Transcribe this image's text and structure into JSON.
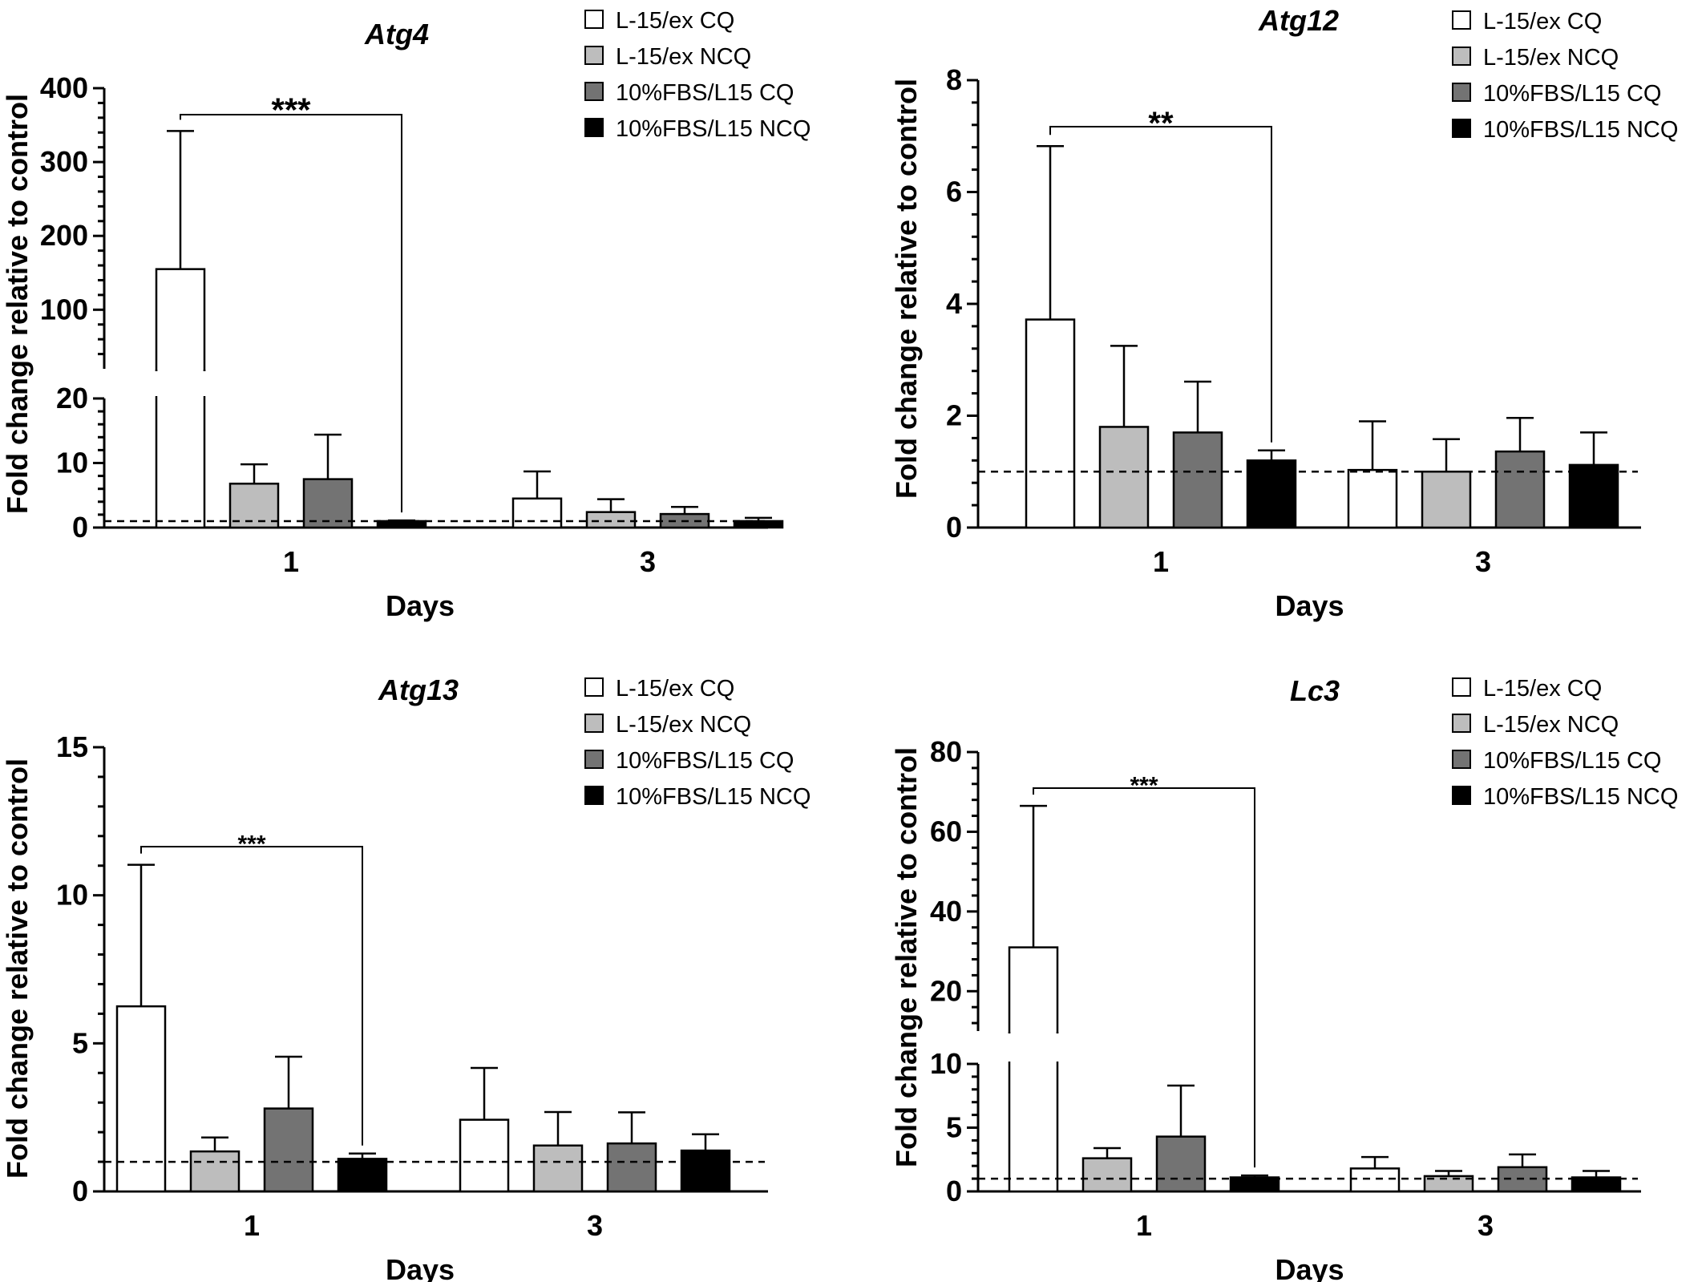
{
  "colors": {
    "L-15/ex CQ": "#ffffff",
    "L-15/ex NCQ": "#bdbdbd",
    "10%FBS/L15 CQ": "#737373",
    "10%FBS/L15 NCQ": "#000000",
    "axis": "#000000",
    "reference_line": "#000000"
  },
  "chart_data": [
    {
      "type": "bar",
      "title": "Atg4",
      "xlabel": "Days",
      "ylabel": "Fold change relative to control",
      "categories": [
        "1",
        "3"
      ],
      "series": [
        {
          "name": "L-15/ex CQ",
          "values": [
            155,
            4.5
          ],
          "errors": [
            187,
            4.2
          ]
        },
        {
          "name": "L-15/ex NCQ",
          "values": [
            6.8,
            2.4
          ],
          "errors": [
            3.0,
            2.0
          ]
        },
        {
          "name": "10%FBS/L15 CQ",
          "values": [
            7.5,
            2.1
          ],
          "errors": [
            6.9,
            1.1
          ]
        },
        {
          "name": "10%FBS/L15 NCQ",
          "values": [
            1.0,
            1.0
          ],
          "errors": [
            0.1,
            0.5
          ]
        }
      ],
      "yaxis_break": {
        "lower": [
          0,
          20
        ],
        "upper": [
          20,
          400
        ]
      },
      "yticks_lower": [
        0,
        10,
        20
      ],
      "yticks_upper": [
        100,
        200,
        300,
        400
      ],
      "reference_line": 1,
      "legend_position": "top-right",
      "significance": {
        "label": "***",
        "from": "L-15/ex CQ day 1",
        "to": "10%FBS/L15 NCQ day 1"
      }
    },
    {
      "type": "bar",
      "title": "Atg12",
      "xlabel": "Days",
      "ylabel": "Fold change relative to control",
      "categories": [
        "1",
        "3"
      ],
      "series": [
        {
          "name": "L-15/ex CQ",
          "values": [
            3.72,
            1.03
          ],
          "errors": [
            3.1,
            0.87
          ]
        },
        {
          "name": "L-15/ex NCQ",
          "values": [
            1.8,
            1.0
          ],
          "errors": [
            1.45,
            0.58
          ]
        },
        {
          "name": "10%FBS/L15 CQ",
          "values": [
            1.7,
            1.36
          ],
          "errors": [
            0.91,
            0.6
          ]
        },
        {
          "name": "10%FBS/L15 NCQ",
          "values": [
            1.2,
            1.12
          ],
          "errors": [
            0.18,
            0.58
          ]
        }
      ],
      "ylim": [
        0,
        8
      ],
      "yticks": [
        0,
        2,
        4,
        6,
        8
      ],
      "reference_line": 1,
      "legend_position": "top-right",
      "significance": {
        "label": "**",
        "from": "L-15/ex CQ day 1",
        "to": "10%FBS/L15 NCQ day 1"
      }
    },
    {
      "type": "bar",
      "title": "Atg13",
      "xlabel": "Days",
      "ylabel": "Fold change relative to control",
      "categories": [
        "1",
        "3"
      ],
      "series": [
        {
          "name": "L-15/ex CQ",
          "values": [
            6.25,
            2.42
          ],
          "errors": [
            4.78,
            1.75
          ]
        },
        {
          "name": "L-15/ex NCQ",
          "values": [
            1.35,
            1.55
          ],
          "errors": [
            0.47,
            1.13
          ]
        },
        {
          "name": "10%FBS/L15 CQ",
          "values": [
            2.8,
            1.62
          ],
          "errors": [
            1.75,
            1.05
          ]
        },
        {
          "name": "10%FBS/L15 NCQ",
          "values": [
            1.1,
            1.38
          ],
          "errors": [
            0.18,
            0.55
          ]
        }
      ],
      "ylim": [
        0,
        15
      ],
      "yticks": [
        0,
        5,
        10,
        15
      ],
      "reference_line": 1,
      "legend_position": "top-right",
      "significance": {
        "label": "***",
        "from": "L-15/ex CQ day 1",
        "to": "10%FBS/L15 NCQ day 1"
      }
    },
    {
      "type": "bar",
      "title": "Lc3",
      "xlabel": "Days",
      "ylabel": "Fold change relative to control",
      "categories": [
        "1",
        "3"
      ],
      "series": [
        {
          "name": "L-15/ex CQ",
          "values": [
            31,
            1.8
          ],
          "errors": [
            35.5,
            0.9
          ]
        },
        {
          "name": "L-15/ex NCQ",
          "values": [
            2.6,
            1.2
          ],
          "errors": [
            0.8,
            0.4
          ]
        },
        {
          "name": "10%FBS/L15 CQ",
          "values": [
            4.3,
            1.9
          ],
          "errors": [
            4.0,
            1.0
          ]
        },
        {
          "name": "10%FBS/L15 NCQ",
          "values": [
            1.1,
            1.1
          ],
          "errors": [
            0.15,
            0.5
          ]
        }
      ],
      "yaxis_break": {
        "lower": [
          0,
          10
        ],
        "upper": [
          10,
          80
        ]
      },
      "yticks_lower": [
        0,
        5,
        10
      ],
      "yticks_upper": [
        20,
        40,
        60,
        80
      ],
      "reference_line": 1,
      "legend_position": "top-right",
      "significance": {
        "label": "***",
        "from": "L-15/ex CQ day 1",
        "to": "10%FBS/L15 NCQ day 1"
      }
    }
  ]
}
